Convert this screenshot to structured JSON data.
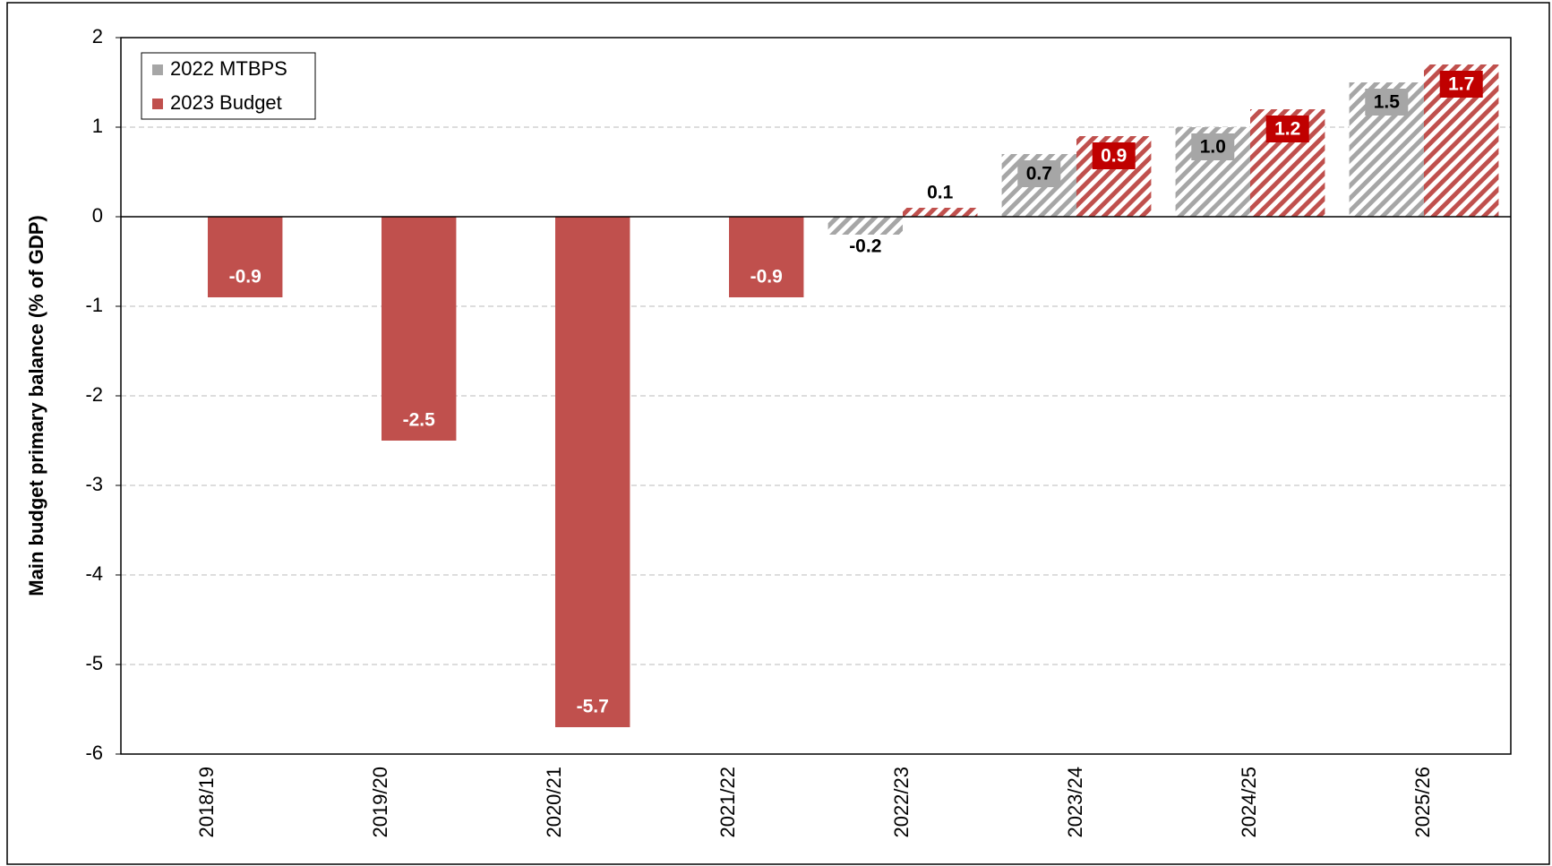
{
  "chart_data": {
    "type": "bar",
    "y_axis_label": "Main budget primary balance (% of GDP)",
    "categories": [
      "2018/19",
      "2019/20",
      "2020/21",
      "2021/22",
      "2022/23",
      "2023/24",
      "2024/25",
      "2025/26"
    ],
    "hatched": [
      false,
      false,
      false,
      false,
      true,
      true,
      true,
      true
    ],
    "series": [
      {
        "name": "2022 MTBPS",
        "color": "#a6a6a6",
        "values": [
          null,
          null,
          null,
          null,
          -0.2,
          0.7,
          1.0,
          1.5
        ],
        "value_labels": [
          null,
          null,
          null,
          null,
          "-0.2",
          "0.7",
          "1.0",
          "1.5"
        ]
      },
      {
        "name": "2023 Budget",
        "color": "#c0504d",
        "values": [
          -0.9,
          -2.5,
          -5.7,
          -0.9,
          0.1,
          0.9,
          1.2,
          1.7
        ]
      }
    ],
    "ylim": [
      -6,
      2
    ],
    "yticks": [
      -6,
      -5,
      -4,
      -3,
      -2,
      -1,
      0,
      1,
      2
    ],
    "grid": true,
    "legend": "top-left"
  }
}
